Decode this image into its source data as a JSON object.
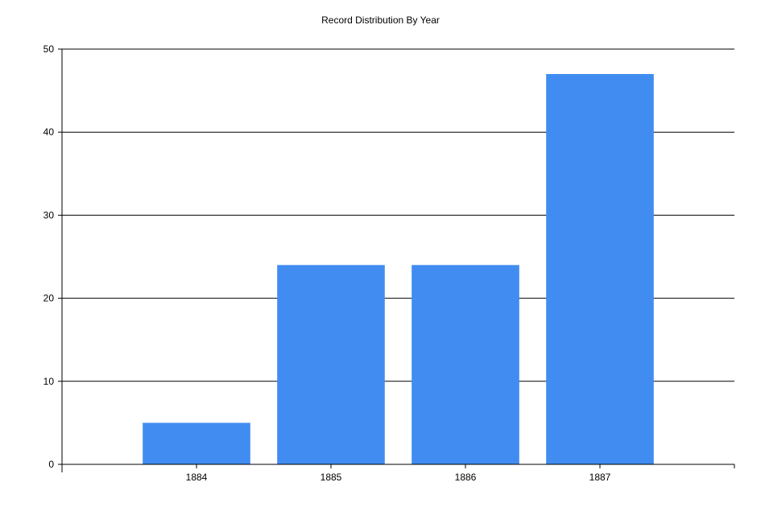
{
  "chart_data": {
    "type": "bar",
    "title": "Record Distribution By Year",
    "xlabel": "",
    "ylabel": "",
    "categories": [
      "1884",
      "1885",
      "1886",
      "1887"
    ],
    "values": [
      5,
      24,
      24,
      47
    ],
    "ylim": [
      0,
      50
    ],
    "yticks": [
      0,
      10,
      20,
      30,
      40,
      50
    ],
    "grid": true,
    "legend": "none",
    "bar_color": "#418cf0"
  }
}
